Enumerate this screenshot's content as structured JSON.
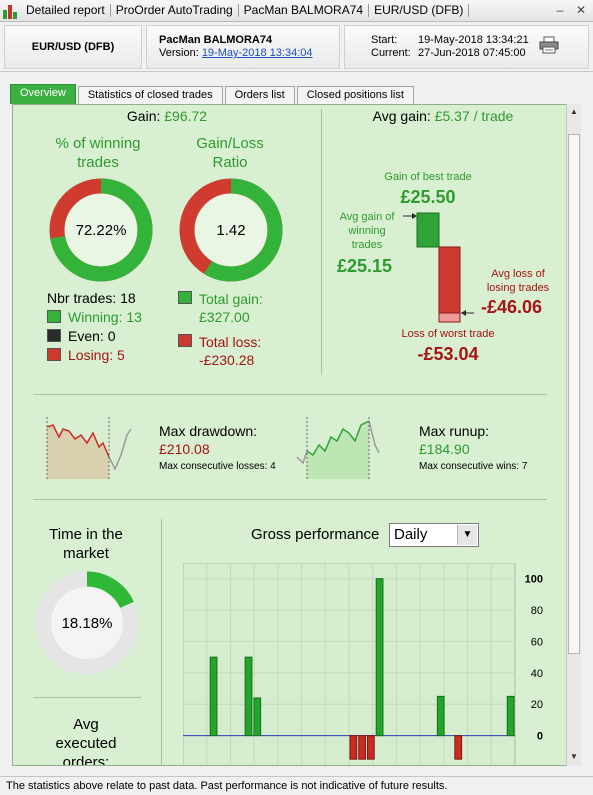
{
  "window": {
    "breadcrumbs": [
      "Detailed report",
      "ProOrder AutoTrading",
      "PacMan BALMORA74",
      "EUR/USD (DFB)"
    ],
    "minimize": "–",
    "close": "✕"
  },
  "header": {
    "instrument": "EUR/USD (DFB)",
    "strategy_name": "PacMan BALMORA74",
    "version_label": "Version:",
    "version_link": "19-May-2018 13:34:04",
    "start_label": "Start:",
    "start_value": "19-May-2018 13:34:21",
    "current_label": "Current:",
    "current_value": "27-Jun-2018 07:45:00"
  },
  "tabs": [
    {
      "label": "Overview",
      "active": true
    },
    {
      "label": "Statistics of closed trades",
      "active": false
    },
    {
      "label": "Orders list",
      "active": false
    },
    {
      "label": "Closed positions list",
      "active": false
    }
  ],
  "gain": {
    "label": "Gain:",
    "value": "£96.72"
  },
  "avg_gain": {
    "label": "Avg gain:",
    "value": "£5.37 / trade"
  },
  "winning_pct": {
    "title_line1": "% of winning",
    "title_line2": "trades",
    "value": "72.22%",
    "fraction": 0.7222
  },
  "gl_ratio": {
    "title_line1": "Gain/Loss",
    "title_line2": "Ratio",
    "value": "1.42",
    "fraction": 0.587
  },
  "trades": {
    "nbr_label": "Nbr trades:",
    "nbr": "18",
    "winning_label": "Winning:",
    "winning": "13",
    "even_label": "Even:",
    "even": "0",
    "losing_label": "Losing:",
    "losing": "5"
  },
  "totals": {
    "gain_label": "Total gain:",
    "gain_value": "£327.00",
    "loss_label": "Total loss:",
    "loss_value": "-£230.28"
  },
  "best_worst": {
    "best_label": "Gain of best trade",
    "best_value": "£25.50",
    "avg_win_label_1": "Avg gain of",
    "avg_win_label_2": "winning",
    "avg_win_label_3": "trades",
    "avg_win_value": "£25.15",
    "avg_loss_label_1": "Avg loss of",
    "avg_loss_label_2": "losing trades",
    "avg_loss_value": "-£46.06",
    "worst_label": "Loss of worst trade",
    "worst_value": "-£53.04"
  },
  "drawdown": {
    "label": "Max drawdown:",
    "value": "£210.08",
    "sub_label": "Max consecutive losses:",
    "sub_value": "4"
  },
  "runup": {
    "label": "Max runup:",
    "value": "£184.90",
    "sub_label": "Max consecutive wins:",
    "sub_value": "7"
  },
  "time_in_market": {
    "title_line1": "Time in the",
    "title_line2": "market",
    "value": "18.18%",
    "fraction": 0.1818
  },
  "avg_orders": {
    "title_line1": "Avg",
    "title_line2": "executed",
    "title_line3": "orders:"
  },
  "gross": {
    "label": "Gross performance",
    "period": "Daily"
  },
  "chart_data": {
    "type": "bar",
    "title": "Gross performance",
    "yticks": [
      100,
      80,
      60,
      40,
      20,
      0
    ],
    "ylim": [
      -20,
      110
    ],
    "grid": true,
    "values": [
      null,
      null,
      null,
      50,
      null,
      null,
      null,
      50,
      24,
      null,
      null,
      null,
      null,
      null,
      null,
      null,
      null,
      null,
      null,
      -15,
      -15,
      -15,
      100,
      null,
      null,
      null,
      null,
      null,
      null,
      25,
      null,
      -15,
      null,
      null,
      null,
      null,
      null,
      25
    ]
  },
  "footer": {
    "text": "The statistics above relate to past data. Past performance is not indicative of future results."
  },
  "colors": {
    "panel": "#d8efd2",
    "green": "#2f9a2f",
    "red": "#a41414",
    "accent_tab": "#3cb043",
    "zero_line": "#2a3dbd"
  }
}
